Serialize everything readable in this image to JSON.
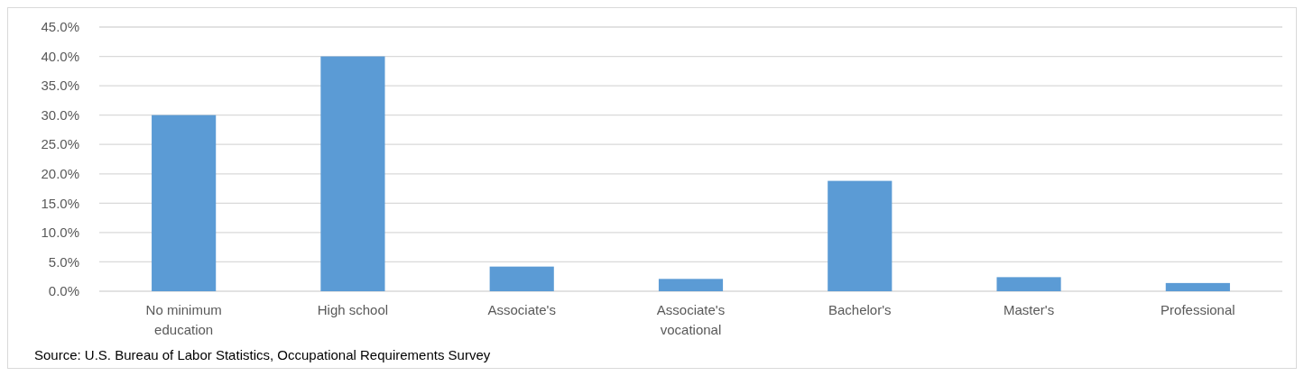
{
  "chart_data": {
    "type": "bar",
    "categories": [
      "No minimum education",
      "High school",
      "Associate's",
      "Associate's vocational",
      "Bachelor's",
      "Master's",
      "Professional"
    ],
    "values": [
      30.0,
      40.0,
      4.2,
      2.1,
      18.8,
      2.4,
      1.4
    ],
    "color": "#5b9bd5",
    "ylim": [
      0,
      45
    ],
    "yticks": [
      {
        "value": 0,
        "label": "0.0%"
      },
      {
        "value": 5,
        "label": "5.0%"
      },
      {
        "value": 10,
        "label": "10.0%"
      },
      {
        "value": 15,
        "label": "15.0%"
      },
      {
        "value": 20,
        "label": "20.0%"
      },
      {
        "value": 25,
        "label": "25.0%"
      },
      {
        "value": 30,
        "label": "30.0%"
      },
      {
        "value": 35,
        "label": "35.0%"
      },
      {
        "value": 40,
        "label": "40.0%"
      },
      {
        "value": 45,
        "label": "45.0%"
      }
    ],
    "grid": "y",
    "annotations": [
      "Source: U.S. Bureau of Labor Statistics, Occupational Requirements Survey"
    ]
  }
}
